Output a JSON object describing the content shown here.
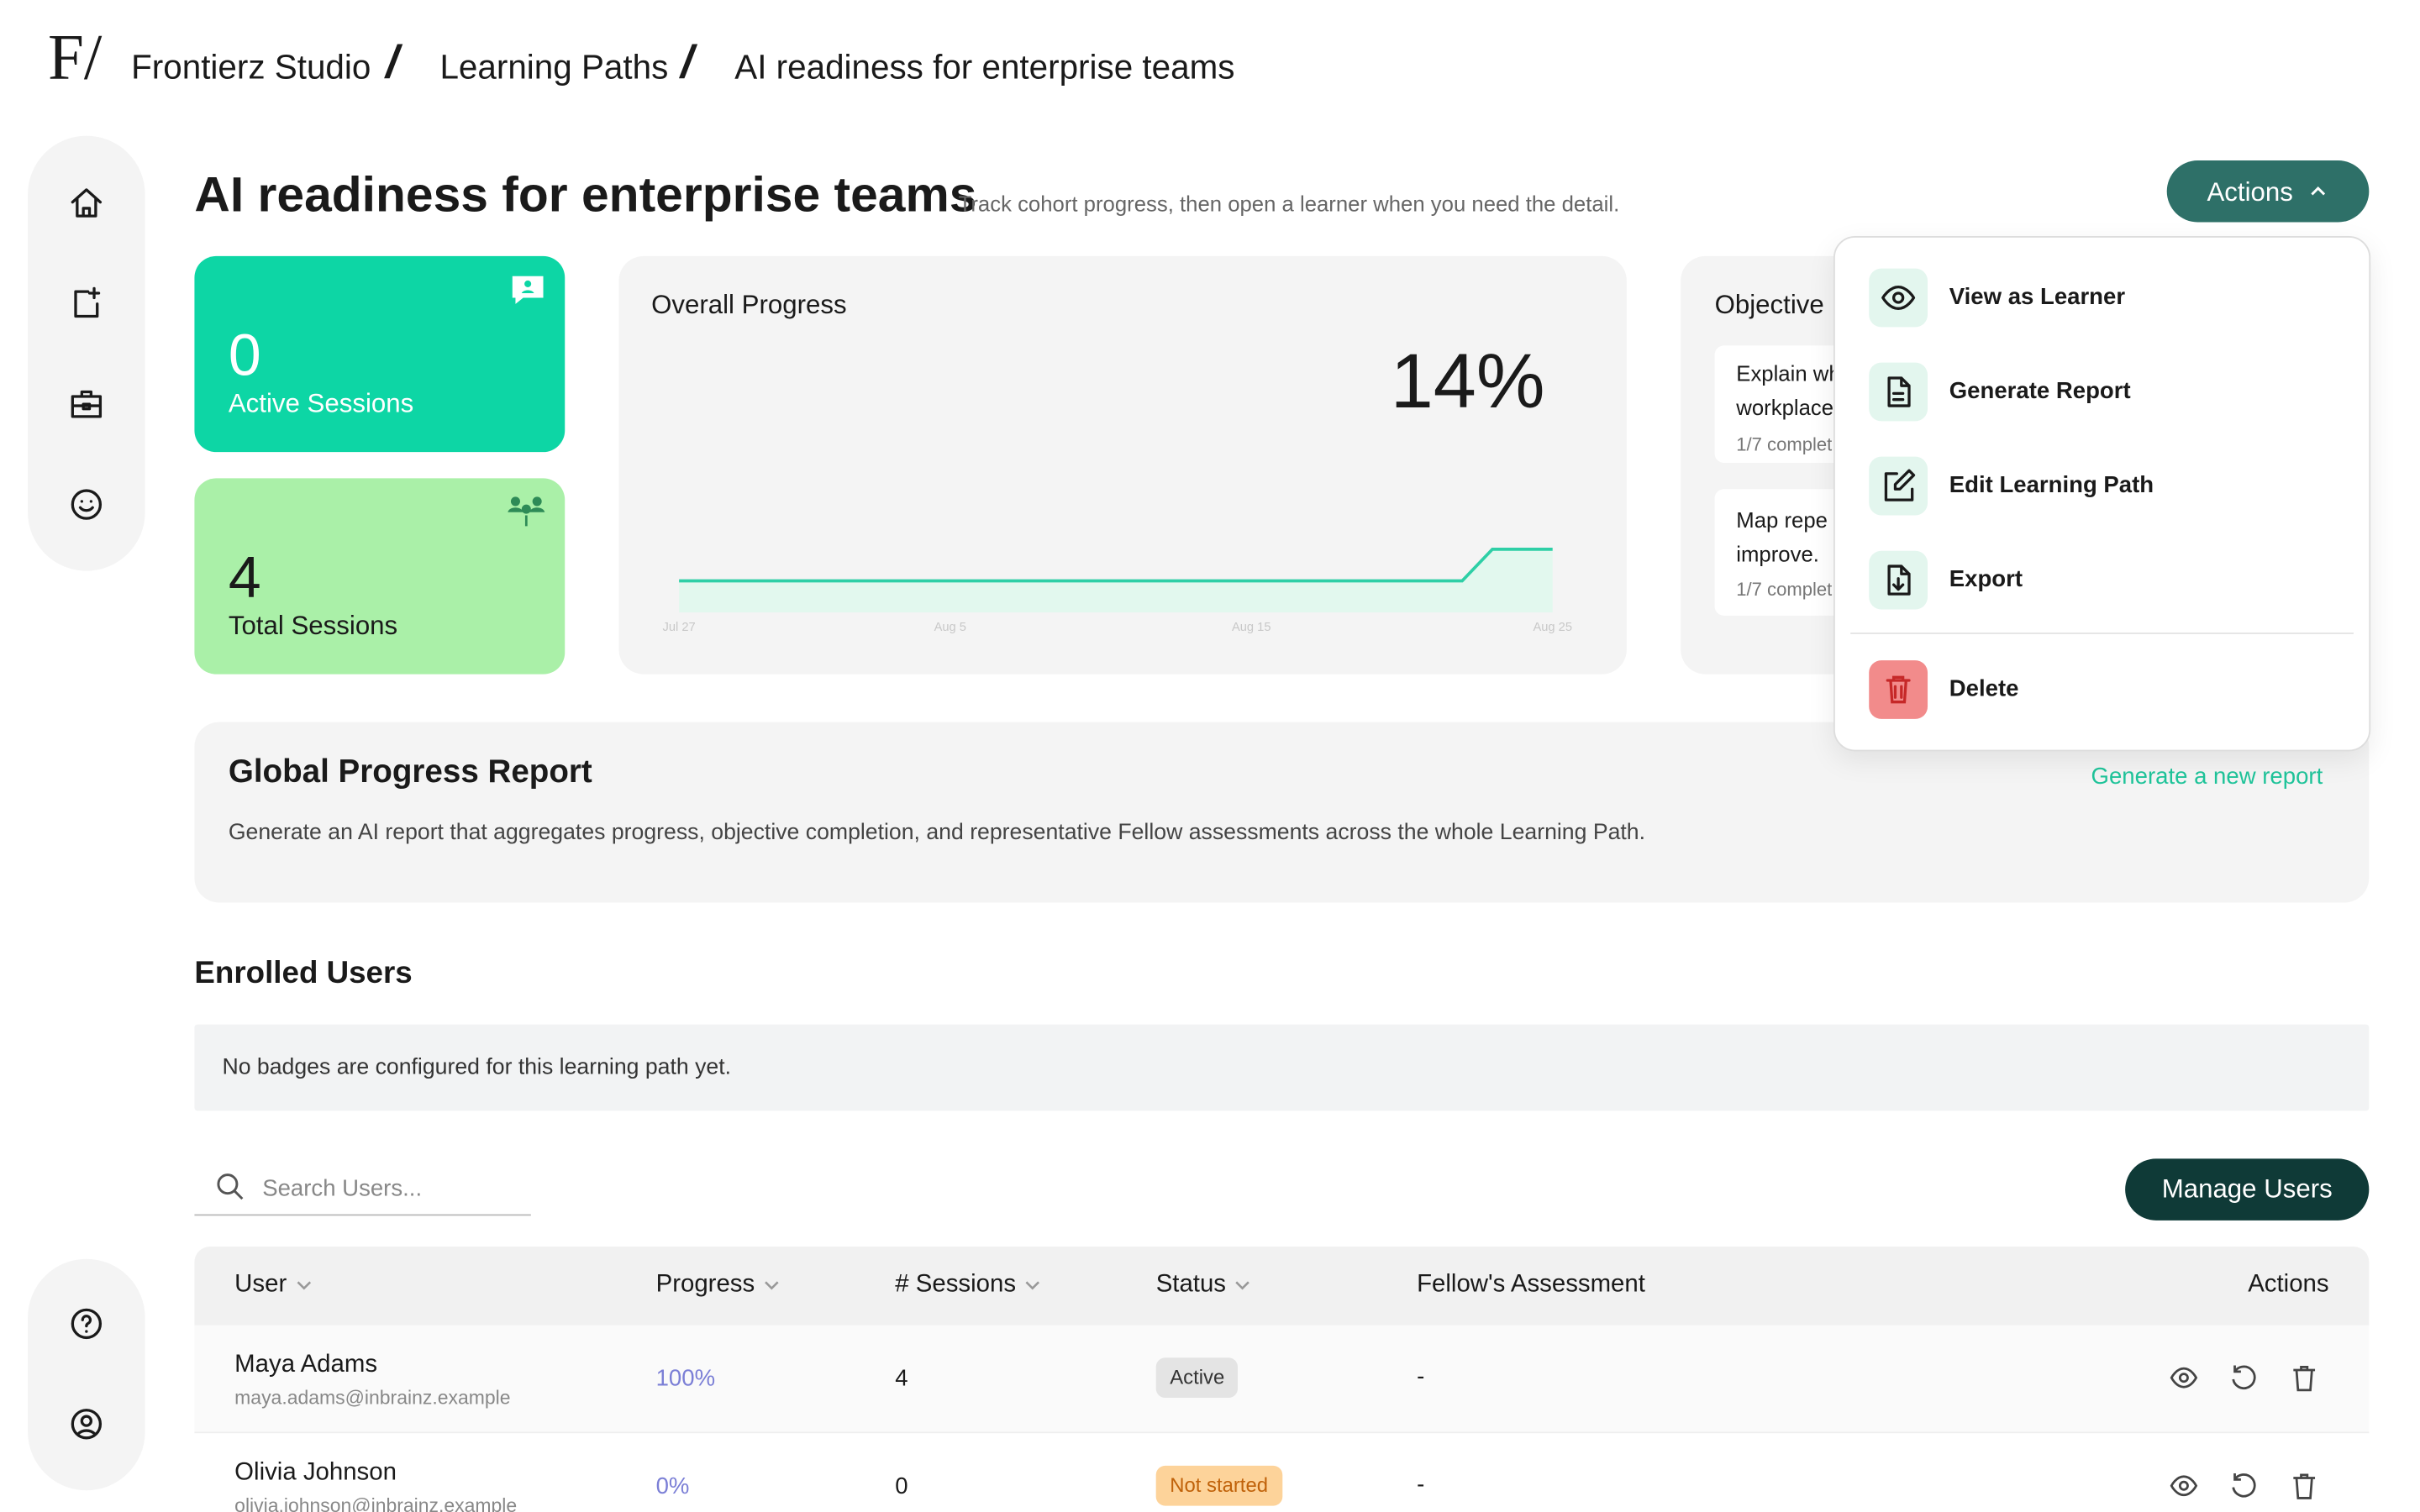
{
  "logo": "F/",
  "breadcrumb": [
    "Frontierz Studio",
    "Learning Paths",
    "AI readiness for enterprise teams"
  ],
  "header": {
    "title": "AI readiness for enterprise teams",
    "subtitle": "Track cohort progress, then open a learner when you need the detail.",
    "actions_button": "Actions"
  },
  "stats": [
    {
      "value": 0,
      "label": "Active Sessions"
    },
    {
      "value": 4,
      "label": "Total Sessions"
    }
  ],
  "chart_data": {
    "type": "line",
    "title": "Overall Progress",
    "value_label": "14%",
    "categories": [
      "Jul 27",
      null,
      null,
      null,
      null,
      null,
      null,
      null,
      null,
      "Aug 5",
      null,
      null,
      null,
      null,
      null,
      null,
      null,
      null,
      null,
      "Aug 15",
      null,
      null,
      null,
      null,
      null,
      null,
      null,
      null,
      null,
      "Aug 25"
    ],
    "values": [
      0,
      0,
      0,
      0,
      0,
      0,
      0,
      0,
      0,
      0,
      0,
      0,
      0,
      0,
      0,
      0,
      0,
      0,
      0,
      0,
      0,
      0,
      0,
      0,
      0,
      0,
      0,
      14,
      14,
      14
    ],
    "color": "#2ecfa6",
    "ylim": [
      -14,
      14
    ]
  },
  "objectives": {
    "title": "Objective",
    "items": [
      {
        "lines": [
          "Explain wh",
          "workplace"
        ],
        "progress": "1/7 complet"
      },
      {
        "lines": [
          "Map repe",
          "improve."
        ],
        "progress": "1/7 complet"
      }
    ]
  },
  "menu": {
    "items": [
      "View as Learner",
      "Generate Report",
      "Edit Learning Path",
      "Export"
    ],
    "danger": "Delete"
  },
  "report": {
    "title": "Global Progress Report",
    "description": "Generate an AI report that aggregates progress, objective completion, and representative Fellow assessments across the whole Learning Path.",
    "link": "Generate a new report"
  },
  "enrolled": {
    "title": "Enrolled Users",
    "badges_note": "No badges are configured for this learning path yet.",
    "search_placeholder": "Search Users...",
    "manage_button": "Manage Users"
  },
  "table": {
    "columns": [
      "User",
      "Progress",
      "# Sessions",
      "Status",
      "Fellow's Assessment",
      "Actions"
    ],
    "rows": [
      {
        "name": "Maya Adams",
        "email": "maya.adams@inbrainz.example",
        "progress": "100%",
        "sessions": 4,
        "status": "Active",
        "assessment": "-"
      },
      {
        "name": "Olivia Johnson",
        "email": "olivia.johnson@inbrainz.example",
        "progress": "0%",
        "sessions": 0,
        "status": "Not started",
        "assessment": "-"
      }
    ]
  }
}
